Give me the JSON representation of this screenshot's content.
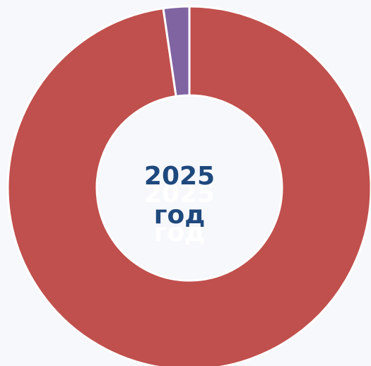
{
  "chart_data": {
    "type": "donut",
    "center_text": [
      "2025",
      "год"
    ],
    "values": [
      97.7,
      2.3
    ],
    "colors": [
      "#c0504d",
      "#8064a2"
    ]
  }
}
